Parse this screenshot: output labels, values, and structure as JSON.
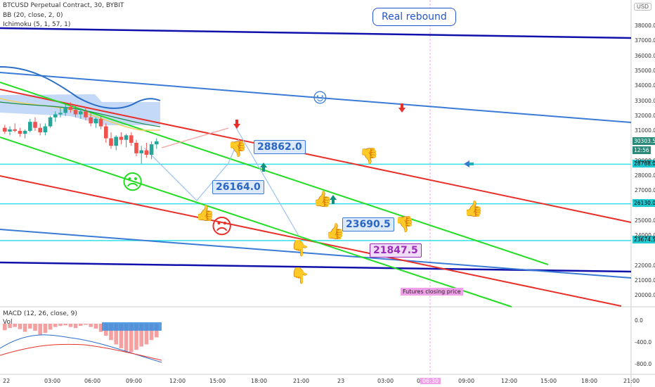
{
  "header": {
    "symbol_line": "BTCUSD Perpetual Contract, 30, BYBIT",
    "bb_line": "BB (20, close, 2, 0)",
    "ichimoku_line": "Ichimoku (5, 1, 57, 1)",
    "macd_line": "MACD (12, 26, close, 9)",
    "vol_label": "Vol",
    "currency": "USD"
  },
  "annotations": {
    "real_rebound": "Real rebound",
    "futures_closing": "Futures closing price",
    "callout_1": "26164.0",
    "callout_2": "28862.0",
    "callout_3": "23690.5",
    "callout_4": "21847.5"
  },
  "price_tags": {
    "current": "30303.5",
    "countdown": "12:56",
    "level_1": "28768.0",
    "level_2": "26130.0",
    "level_3": "23674.5"
  },
  "axis": {
    "y_labels": [
      "38000.0",
      "37000.0",
      "36000.0",
      "35000.0",
      "34000.0",
      "33000.0",
      "32000.0",
      "31000.0",
      "29000.0",
      "28000.0",
      "27000.0",
      "25000.0",
      "24000.0",
      "22000.0",
      "21000.0",
      "20000.0"
    ],
    "macd_labels": [
      "0.0",
      "-400.0",
      "-800.0"
    ],
    "x_labels": [
      "22",
      "03:00",
      "06:00",
      "09:00",
      "12:00",
      "15:00",
      "18:00",
      "21:00",
      "23",
      "03:00",
      "06:00",
      "09:00",
      "12:00",
      "15:00",
      "18:00",
      "21:00"
    ],
    "time_marker": "06:30"
  },
  "colors": {
    "red_channel": "#e8302a",
    "green_channel": "#22dd22",
    "blue_trend": "#3a7bd5",
    "navy_line": "#1010aa",
    "cyan_level": "#33e0e8",
    "pink_marker": "#f0a0e8"
  },
  "chart_data": {
    "type": "candlestick",
    "title": "BTCUSD Perpetual Contract, 30, BYBIT",
    "ylim": [
      19000,
      38500
    ],
    "price_levels": [
      28768.0,
      26130.0,
      23674.5
    ],
    "current_price": 30303.5,
    "targets": [
      26164.0,
      28862.0,
      23690.5,
      21847.5
    ],
    "candles": [
      {
        "o": 31200,
        "h": 31400,
        "l": 30800,
        "c": 30950
      },
      {
        "o": 30950,
        "h": 31300,
        "l": 30700,
        "c": 31100
      },
      {
        "o": 31100,
        "h": 31500,
        "l": 30900,
        "c": 31000
      },
      {
        "o": 31000,
        "h": 31200,
        "l": 30600,
        "c": 30800
      },
      {
        "o": 30800,
        "h": 31100,
        "l": 30500,
        "c": 31000
      },
      {
        "o": 31000,
        "h": 31800,
        "l": 30900,
        "c": 31600
      },
      {
        "o": 31600,
        "h": 31900,
        "l": 31000,
        "c": 31200
      },
      {
        "o": 31200,
        "h": 31500,
        "l": 30700,
        "c": 30900
      },
      {
        "o": 30900,
        "h": 31500,
        "l": 30700,
        "c": 31300
      },
      {
        "o": 31300,
        "h": 32000,
        "l": 31200,
        "c": 31900
      },
      {
        "o": 31900,
        "h": 32300,
        "l": 31600,
        "c": 32100
      },
      {
        "o": 32100,
        "h": 32600,
        "l": 31900,
        "c": 32200
      },
      {
        "o": 32200,
        "h": 32800,
        "l": 32000,
        "c": 32600
      },
      {
        "o": 32600,
        "h": 32900,
        "l": 32200,
        "c": 32400
      },
      {
        "o": 32400,
        "h": 32700,
        "l": 31900,
        "c": 32100
      },
      {
        "o": 32100,
        "h": 32500,
        "l": 31800,
        "c": 32300
      },
      {
        "o": 32300,
        "h": 32600,
        "l": 31700,
        "c": 31900
      },
      {
        "o": 31900,
        "h": 32200,
        "l": 31300,
        "c": 31500
      },
      {
        "o": 31500,
        "h": 31900,
        "l": 31200,
        "c": 31800
      },
      {
        "o": 31800,
        "h": 32000,
        "l": 31100,
        "c": 31300
      },
      {
        "o": 31300,
        "h": 31500,
        "l": 30200,
        "c": 30500
      },
      {
        "o": 30500,
        "h": 30900,
        "l": 29800,
        "c": 30000
      },
      {
        "o": 30000,
        "h": 30700,
        "l": 29700,
        "c": 30600
      },
      {
        "o": 30600,
        "h": 30900,
        "l": 30100,
        "c": 30400
      },
      {
        "o": 30400,
        "h": 30800,
        "l": 29900,
        "c": 30700
      },
      {
        "o": 30700,
        "h": 30900,
        "l": 30000,
        "c": 30200
      },
      {
        "o": 30200,
        "h": 30400,
        "l": 29300,
        "c": 29500
      },
      {
        "o": 29500,
        "h": 30000,
        "l": 28800,
        "c": 29700
      },
      {
        "o": 29700,
        "h": 30200,
        "l": 29200,
        "c": 29400
      },
      {
        "o": 29400,
        "h": 30300,
        "l": 29100,
        "c": 30100
      },
      {
        "o": 30100,
        "h": 30500,
        "l": 29800,
        "c": 30300
      }
    ],
    "macd_hist": [
      -120,
      -80,
      -60,
      -100,
      -150,
      -90,
      -130,
      -200,
      -170,
      -110,
      -60,
      -40,
      -30,
      -60,
      -80,
      -40,
      -20,
      -60,
      -90,
      -150,
      -220,
      -300,
      -380,
      -450,
      -500,
      -520,
      -480,
      -420,
      -380,
      -300,
      -250
    ]
  }
}
